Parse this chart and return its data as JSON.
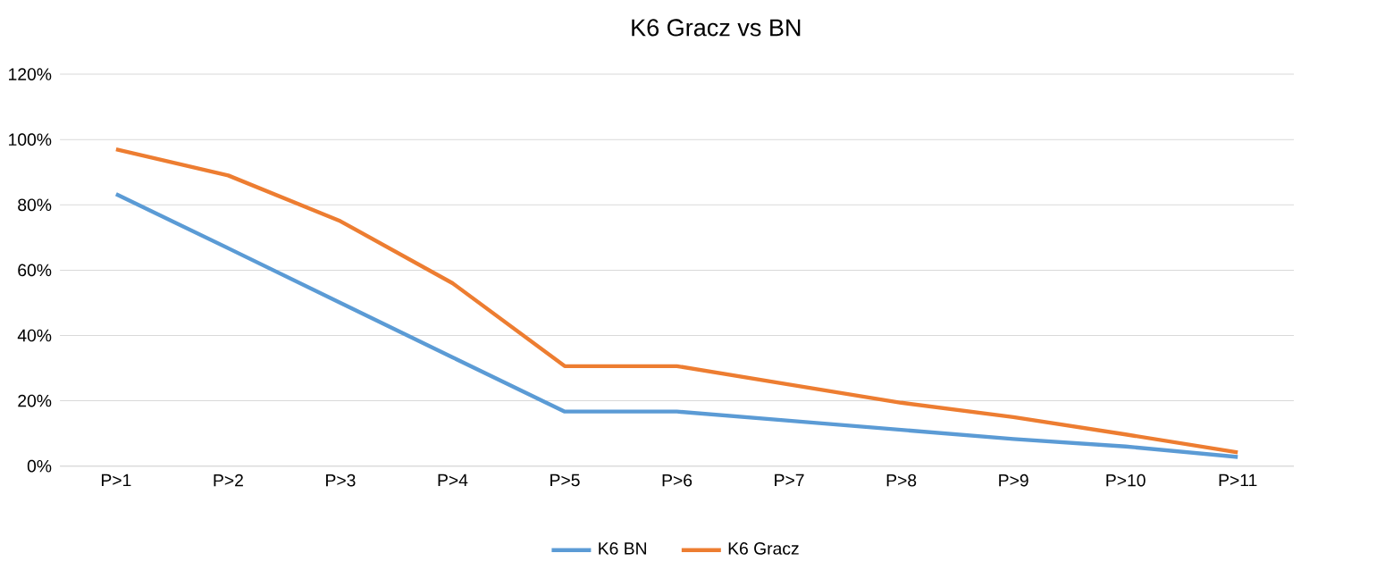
{
  "chart_data": {
    "type": "line",
    "title": "K6 Gracz vs BN",
    "categories": [
      "P>1",
      "P>2",
      "P>3",
      "P>4",
      "P>5",
      "P>6",
      "P>7",
      "P>8",
      "P>9",
      "P>10",
      "P>11"
    ],
    "series": [
      {
        "name": "K6 BN",
        "color": "#5b9bd5",
        "values": [
          83.3,
          66.7,
          50,
          33.3,
          16.7,
          16.7,
          13.9,
          11.1,
          8.3,
          6,
          2.8
        ]
      },
      {
        "name": "K6 Gracz",
        "color": "#ed7d31",
        "values": [
          97,
          89,
          75,
          56,
          30.6,
          30.6,
          25,
          19.4,
          15,
          9.7,
          4.2
        ]
      }
    ],
    "ylim": [
      0,
      120
    ],
    "yticks": [
      {
        "value": 0,
        "label": "0%"
      },
      {
        "value": 20,
        "label": "20%"
      },
      {
        "value": 40,
        "label": "40%"
      },
      {
        "value": 60,
        "label": "60%"
      },
      {
        "value": 80,
        "label": "80%"
      },
      {
        "value": 100,
        "label": "100%"
      },
      {
        "value": 120,
        "label": "120%"
      }
    ],
    "grid": "y",
    "legend": "bottom",
    "marker": "none",
    "line_style": "solid"
  }
}
